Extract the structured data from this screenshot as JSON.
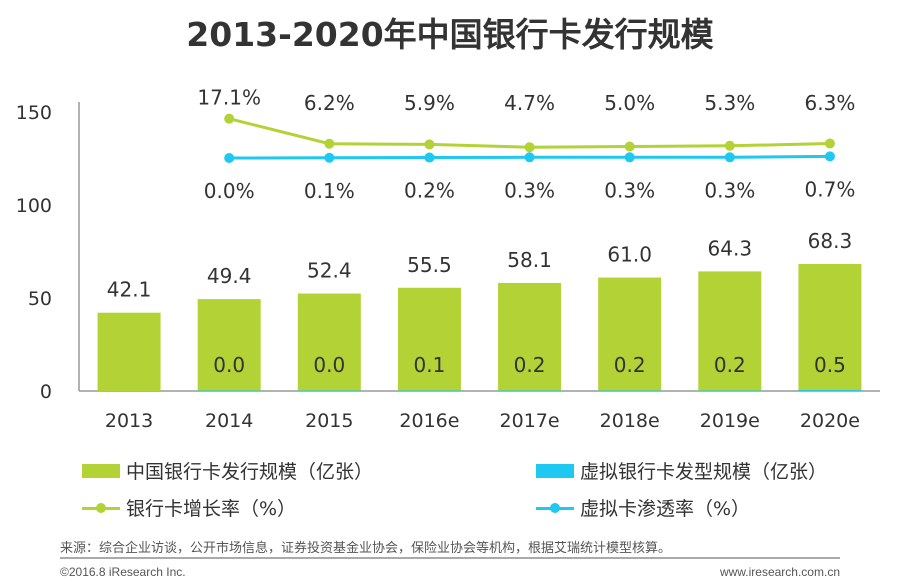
{
  "chart_data": {
    "type": "bar",
    "title": "2013-2020年中国银行卡发行规模",
    "categories": [
      "2013",
      "2014",
      "2015",
      "2016e",
      "2017e",
      "2018e",
      "2019e",
      "2020e"
    ],
    "ylim": [
      0,
      150
    ],
    "yticks": [
      0,
      50,
      100,
      150
    ],
    "grid": false,
    "secondary_axis": "hidden",
    "legend_position": "bottom",
    "series": [
      {
        "name": "中国银行卡发行规模（亿张）",
        "kind": "bar",
        "color": "#b3d235",
        "values": [
          42.1,
          49.4,
          52.4,
          55.5,
          58.1,
          61.0,
          64.3,
          68.3
        ],
        "labels": [
          "42.1",
          "49.4",
          "52.4",
          "55.5",
          "58.1",
          "61.0",
          "64.3",
          "68.3"
        ]
      },
      {
        "name": "虚拟银行卡发型规模（亿张）",
        "kind": "bar",
        "color": "#1ec8f0",
        "values": [
          null,
          0.0,
          0.0,
          0.1,
          0.2,
          0.2,
          0.2,
          0.5
        ],
        "labels": [
          "",
          "0.0",
          "0.0",
          "0.1",
          "0.2",
          "0.2",
          "0.2",
          "0.5"
        ]
      },
      {
        "name": "银行卡增长率（%）",
        "kind": "line",
        "axis": "secondary",
        "color": "#b3d235",
        "values": [
          null,
          17.1,
          6.2,
          5.9,
          4.7,
          5.0,
          5.3,
          6.3
        ],
        "labels": [
          "",
          "17.1%",
          "6.2%",
          "5.9%",
          "4.7%",
          "5.0%",
          "5.3%",
          "6.3%"
        ]
      },
      {
        "name": "虚拟卡渗透率（%）",
        "kind": "line",
        "axis": "secondary",
        "color": "#1ec8f0",
        "values": [
          null,
          0.0,
          0.1,
          0.2,
          0.3,
          0.3,
          0.3,
          0.7
        ],
        "labels": [
          "",
          "0.0%",
          "0.1%",
          "0.2%",
          "0.3%",
          "0.3%",
          "0.3%",
          "0.7%"
        ]
      }
    ]
  },
  "footer": {
    "source": "来源：综合企业访谈，公开市场信息，证券投资基金业协会，保险业协会等机构，根据艾瑞统计模型核算。",
    "copyright": "©2016.8 iResearch Inc.",
    "website": "www.iresearch.com.cn"
  }
}
